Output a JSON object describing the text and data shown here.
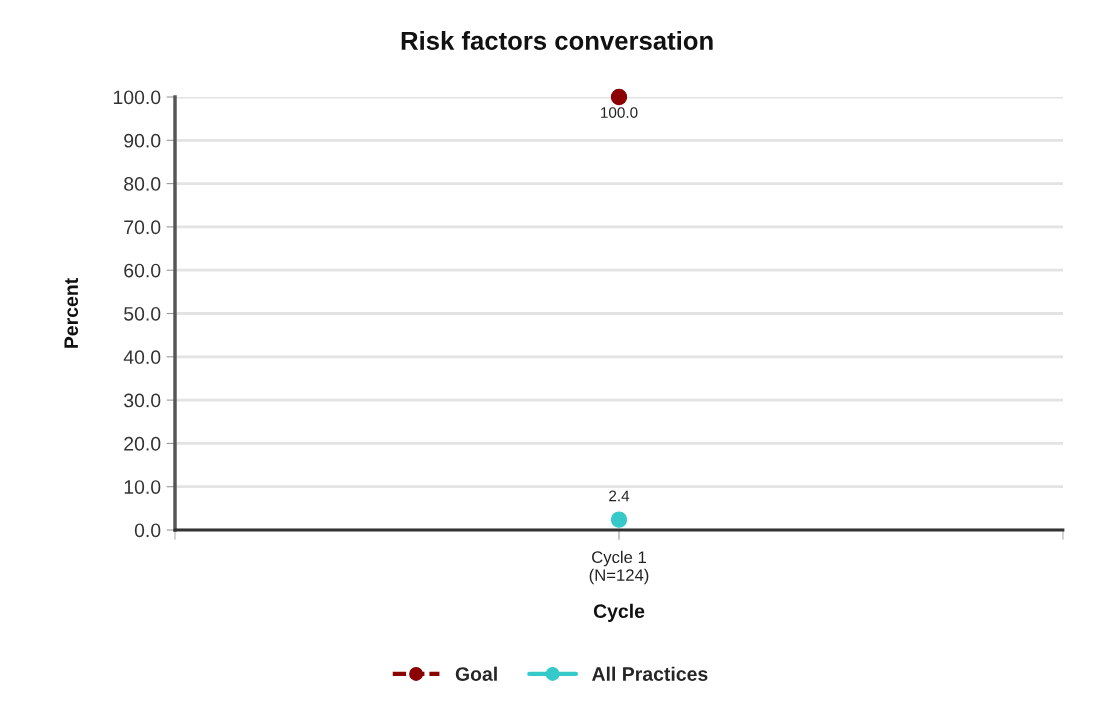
{
  "chart_data": {
    "type": "line",
    "title": "Risk factors conversation",
    "xlabel": "Cycle",
    "ylabel": "Percent",
    "categories": [
      "Cycle 1\n(N=124)"
    ],
    "series": [
      {
        "name": "Goal",
        "color": "#8b0000",
        "values": [
          100.0
        ],
        "value_labels": [
          "100.0"
        ],
        "line_style": "dashed"
      },
      {
        "name": "All Practices",
        "color": "#36c9c9",
        "values": [
          2.4
        ],
        "value_labels": [
          "2.4"
        ],
        "line_style": "solid"
      }
    ],
    "ylim": [
      0,
      100
    ],
    "yticks": [
      {
        "value": 0,
        "label": "0.0"
      },
      {
        "value": 10,
        "label": "10.0"
      },
      {
        "value": 20,
        "label": "20.0"
      },
      {
        "value": 30,
        "label": "30.0"
      },
      {
        "value": 40,
        "label": "40.0"
      },
      {
        "value": 50,
        "label": "50.0"
      },
      {
        "value": 60,
        "label": "60.0"
      },
      {
        "value": 70,
        "label": "70.0"
      },
      {
        "value": 80,
        "label": "80.0"
      },
      {
        "value": 90,
        "label": "90.0"
      },
      {
        "value": 100,
        "label": "100.0"
      }
    ],
    "grid": "y",
    "legend": "bottom",
    "marker": "circle"
  }
}
